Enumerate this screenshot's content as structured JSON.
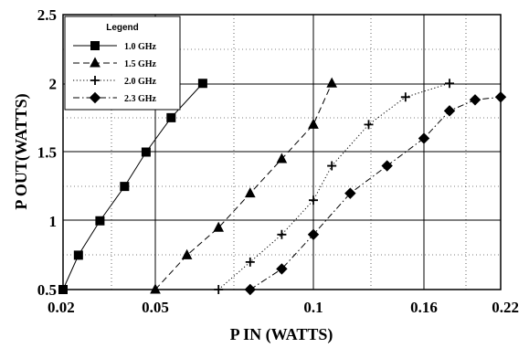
{
  "chart_data": {
    "type": "line",
    "xlabel": "P IN (WATTS)",
    "ylabel": "P OUT(WATTS)",
    "ylim": [
      0.5,
      2.5
    ],
    "x_tick_labels": [
      "0.02",
      "0.05",
      "0.1",
      "0.16",
      "0.22"
    ],
    "y_tick_labels": [
      "0.5",
      "1",
      "1.5",
      "2",
      "2.5"
    ],
    "y_ticks": [
      0.5,
      1,
      1.5,
      2,
      2.5
    ],
    "grid": "major solid, minor dotted",
    "legend": {
      "title": "Legend",
      "position": "top-left"
    },
    "series": [
      {
        "name": "1.0 GHz",
        "marker": "square",
        "line": "solid",
        "points": [
          [
            0.02,
            0.5
          ],
          [
            0.025,
            0.75
          ],
          [
            0.032,
            1.0
          ],
          [
            0.04,
            1.25
          ],
          [
            0.047,
            1.5
          ],
          [
            0.055,
            1.75
          ],
          [
            0.065,
            2.0
          ]
        ]
      },
      {
        "name": "1.5 GHz",
        "marker": "triangle",
        "line": "dashed",
        "points": [
          [
            0.05,
            0.5
          ],
          [
            0.06,
            0.75
          ],
          [
            0.07,
            0.95
          ],
          [
            0.08,
            1.2
          ],
          [
            0.09,
            1.45
          ],
          [
            0.1,
            1.7
          ],
          [
            0.11,
            2.0
          ]
        ]
      },
      {
        "name": "2.0 GHz",
        "marker": "plus",
        "line": "dotted",
        "points": [
          [
            0.07,
            0.5
          ],
          [
            0.08,
            0.7
          ],
          [
            0.09,
            0.9
          ],
          [
            0.1,
            1.15
          ],
          [
            0.11,
            1.4
          ],
          [
            0.13,
            1.7
          ],
          [
            0.15,
            1.9
          ],
          [
            0.18,
            2.0
          ]
        ]
      },
      {
        "name": "2.3 GHz",
        "marker": "diamond",
        "line": "dash-dot",
        "points": [
          [
            0.08,
            0.5
          ],
          [
            0.09,
            0.65
          ],
          [
            0.1,
            0.9
          ],
          [
            0.12,
            1.2
          ],
          [
            0.14,
            1.4
          ],
          [
            0.16,
            1.6
          ],
          [
            0.18,
            1.8
          ],
          [
            0.2,
            1.88
          ],
          [
            0.22,
            1.9
          ]
        ]
      }
    ]
  }
}
